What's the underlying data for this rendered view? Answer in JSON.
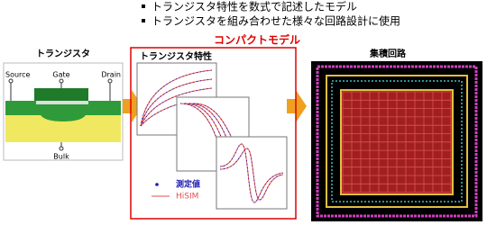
{
  "bullets": [
    "トランジスタ特性を数式で記述したモデル",
    "トランジスタを組み合わせた様々な回路設計に使用"
  ],
  "compact_model_label": "コンパクトモデル",
  "transistor": {
    "title": "トランジスタ",
    "source": "Source",
    "gate": "Gate",
    "drain": "Drain",
    "bulk": "Bulk"
  },
  "characteristics": {
    "title": "トランジスタ特性",
    "legend": [
      "測定値",
      "HiSIM"
    ]
  },
  "integrated_circuit": {
    "title": "集積回路"
  }
}
